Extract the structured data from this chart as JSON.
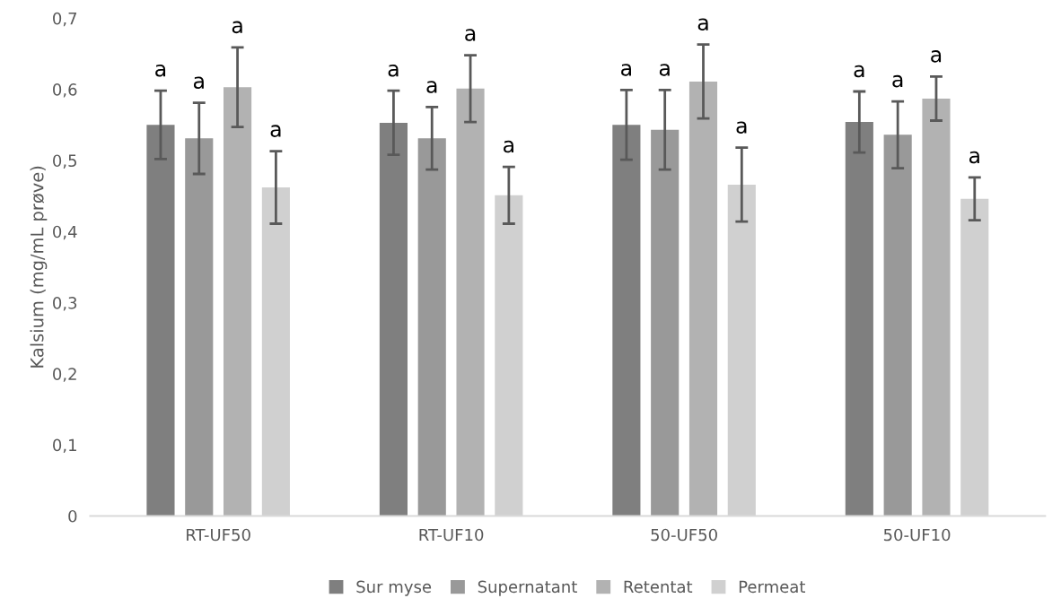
{
  "chart_data": {
    "type": "bar",
    "ylabel": "Kalsium (mg/mL prøve)",
    "categories": [
      "RT-UF50",
      "RT-UF10",
      "50-UF50",
      "50-UF10"
    ],
    "series": [
      {
        "name": "Sur myse",
        "color": "#7f7f7f",
        "values": [
          0.55,
          0.553,
          0.55,
          0.554
        ],
        "errors": [
          0.048,
          0.045,
          0.049,
          0.043
        ]
      },
      {
        "name": "Supernatant",
        "color": "#999999",
        "values": [
          0.531,
          0.531,
          0.543,
          0.536
        ],
        "errors": [
          0.05,
          0.044,
          0.056,
          0.047
        ]
      },
      {
        "name": "Retentat",
        "color": "#b2b2b2",
        "values": [
          0.603,
          0.601,
          0.611,
          0.587
        ],
        "errors": [
          0.056,
          0.047,
          0.052,
          0.031
        ]
      },
      {
        "name": "Permeat",
        "color": "#d0d0d0",
        "values": [
          0.462,
          0.451,
          0.466,
          0.446
        ],
        "errors": [
          0.051,
          0.04,
          0.052,
          0.03
        ]
      }
    ],
    "ylim": [
      0,
      0.7
    ],
    "yticks": [
      {
        "value": 0,
        "label": "0"
      },
      {
        "value": 0.1,
        "label": "0,1"
      },
      {
        "value": 0.2,
        "label": "0,2"
      },
      {
        "value": 0.3,
        "label": "0,3"
      },
      {
        "value": 0.4,
        "label": "0,4"
      },
      {
        "value": 0.5,
        "label": "0,5"
      },
      {
        "value": 0.6,
        "label": "0,6"
      },
      {
        "value": 0.7,
        "label": "0,7"
      }
    ],
    "grid": false,
    "legend": "bottom",
    "annotations": [
      "a",
      "a",
      "a",
      "a",
      "a",
      "a",
      "a",
      "a",
      "a",
      "a",
      "a",
      "a",
      "a",
      "a",
      "a",
      "a"
    ]
  }
}
